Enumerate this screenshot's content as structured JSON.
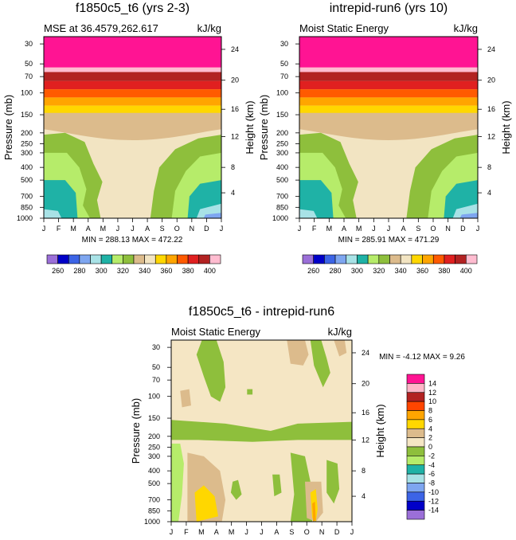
{
  "chart_data": [
    {
      "type": "heatmap",
      "title": "f1850c5_t6 (yrs 2-3)",
      "left_label": "MSE at 36.4579,262.617",
      "right_label": "kJ/kg",
      "ylabel": "Pressure (mb)",
      "ylabel_right": "Height (km)",
      "x_ticks": [
        "J",
        "F",
        "M",
        "A",
        "M",
        "J",
        "J",
        "A",
        "S",
        "O",
        "N",
        "D",
        "J"
      ],
      "y_ticks": [
        "30",
        "50",
        "70",
        "100",
        "150",
        "200",
        "250",
        "300",
        "400",
        "500",
        "700",
        "850",
        "1000"
      ],
      "height_ticks": [
        "24",
        "20",
        "16",
        "12",
        "8",
        "4"
      ],
      "min_max_text": "MIN = 288.13 MAX = 472.22",
      "min": 288.13,
      "max": 472.22,
      "colorbar_labels": [
        "260",
        "280",
        "300",
        "320",
        "340",
        "360",
        "380",
        "400"
      ]
    },
    {
      "type": "heatmap",
      "title": "intrepid-run6 (yrs 10)",
      "left_label": "Moist Static Energy",
      "right_label": "kJ/kg",
      "ylabel": "Pressure (mb)",
      "ylabel_right": "Height (km)",
      "x_ticks": [
        "J",
        "F",
        "M",
        "A",
        "M",
        "J",
        "J",
        "A",
        "S",
        "O",
        "N",
        "D",
        "J"
      ],
      "y_ticks": [
        "30",
        "50",
        "70",
        "100",
        "150",
        "200",
        "250",
        "300",
        "400",
        "500",
        "700",
        "850",
        "1000"
      ],
      "height_ticks": [
        "24",
        "20",
        "16",
        "12",
        "8",
        "4"
      ],
      "min_max_text": "MIN = 285.91 MAX = 471.29",
      "min": 285.91,
      "max": 471.29,
      "colorbar_labels": [
        "260",
        "280",
        "300",
        "320",
        "340",
        "360",
        "380",
        "400"
      ]
    },
    {
      "type": "heatmap",
      "title": "f1850c5_t6 - intrepid-run6",
      "left_label": "Moist Static Energy",
      "right_label": "kJ/kg",
      "ylabel": "Pressure (mb)",
      "ylabel_right": "Height (km)",
      "x_ticks": [
        "J",
        "F",
        "M",
        "A",
        "M",
        "J",
        "J",
        "A",
        "S",
        "O",
        "N",
        "D",
        "J"
      ],
      "y_ticks": [
        "30",
        "50",
        "70",
        "100",
        "150",
        "200",
        "250",
        "300",
        "400",
        "500",
        "700",
        "850",
        "1000"
      ],
      "height_ticks": [
        "24",
        "20",
        "16",
        "12",
        "8",
        "4"
      ],
      "min_max_text": "MIN =  -4.12 MAX =   9.26",
      "min": -4.12,
      "max": 9.26,
      "colorbar_labels": [
        "14",
        "12",
        "10",
        "8",
        "6",
        "4",
        "2",
        "0",
        "-2",
        "-4",
        "-6",
        "-8",
        "-10",
        "-12",
        "-14"
      ]
    }
  ],
  "colors": {
    "abs_palette": [
      "#9b6fd8",
      "#0000c8",
      "#3c64e6",
      "#7ea6f0",
      "#a8e2e6",
      "#1fb2a6",
      "#b6ec6a",
      "#8ebf3c",
      "#dcbb8c",
      "#f2e4c2",
      "#ffd700",
      "#ffa500",
      "#ff5a00",
      "#e02020",
      "#b22222",
      "#ffbcd0",
      "#ff1493"
    ],
    "diff_palette": [
      "#ff1493",
      "#ffb6c8",
      "#b22222",
      "#ff4500",
      "#ffa500",
      "#ffd700",
      "#dcbb8c",
      "#f5e6c4",
      "#8ebf3c",
      "#b6ec6a",
      "#1fb2a6",
      "#a8e2e6",
      "#7ea6f0",
      "#3c64e6",
      "#0000c8",
      "#9b6fd8"
    ]
  }
}
